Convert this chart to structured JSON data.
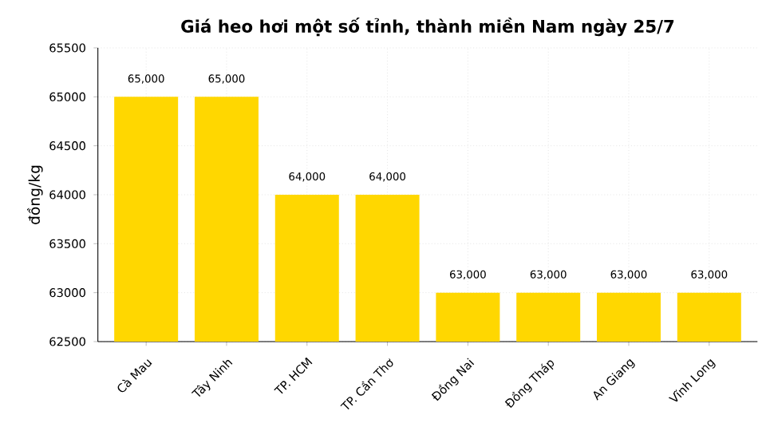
{
  "chart_data": {
    "type": "bar",
    "title": "Giá heo hơi một số tỉnh, thành miền Nam ngày 25/7",
    "ylabel": "đồng/kg",
    "categories": [
      "Cà Mau",
      "Tây Ninh",
      "TP. HCM",
      "TP. Cần Thơ",
      "Đồng Nai",
      "Đồng Tháp",
      "An Giang",
      "Vĩnh Long"
    ],
    "values": [
      65000,
      65000,
      64000,
      64000,
      63000,
      63000,
      63000,
      63000
    ],
    "value_labels": [
      "65,000",
      "65,000",
      "64,000",
      "64,000",
      "63,000",
      "63,000",
      "63,000",
      "63,000"
    ],
    "color": "#ffd700",
    "ylim": [
      62500,
      65500
    ],
    "yticks": [
      62500,
      63000,
      63500,
      64000,
      64500,
      65000,
      65500
    ],
    "grid": true
  }
}
